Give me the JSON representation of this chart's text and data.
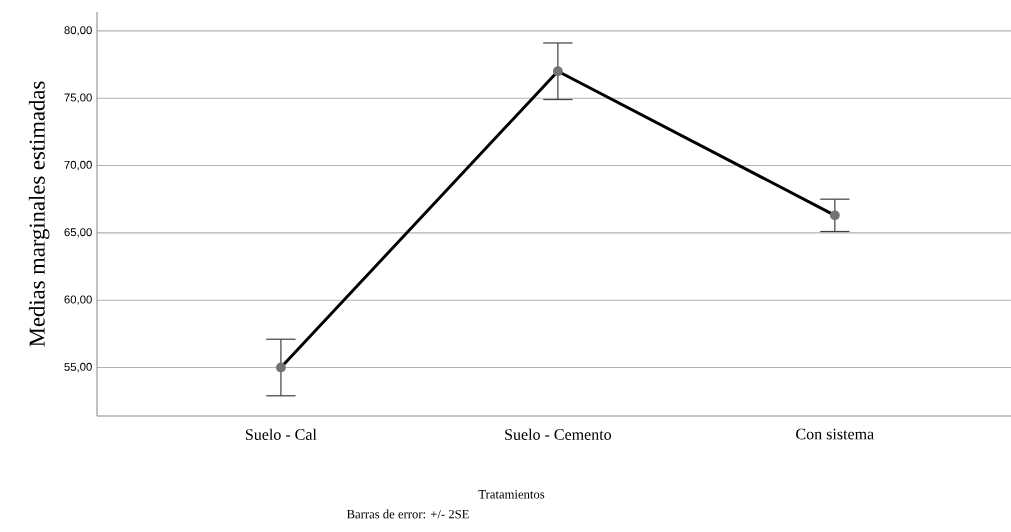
{
  "chart_data": {
    "type": "line",
    "xlabel": "Tratamientos",
    "ylabel": "Medias marginales estimadas",
    "categories": [
      "Suelo - Cal",
      "Suelo - Cemento",
      "Con sistema"
    ],
    "series": [
      {
        "color": "#000000",
        "values": [
          55.0,
          77.0,
          66.3
        ],
        "errors": [
          2.1,
          2.1,
          1.2
        ]
      }
    ],
    "ylim": [
      51.4,
      81.4
    ],
    "yticks": [
      {
        "value": 55,
        "label": "55,00"
      },
      {
        "value": 60,
        "label": "60,00"
      },
      {
        "value": 65,
        "label": "65,00"
      },
      {
        "value": 70,
        "label": "70,00"
      },
      {
        "value": 75,
        "label": "75,00"
      },
      {
        "value": 80,
        "label": "80,00"
      }
    ],
    "grid": "y",
    "marker": "circle",
    "line_style": "solid",
    "annotations": [
      "Barras de error: +/- 2SE"
    ]
  }
}
